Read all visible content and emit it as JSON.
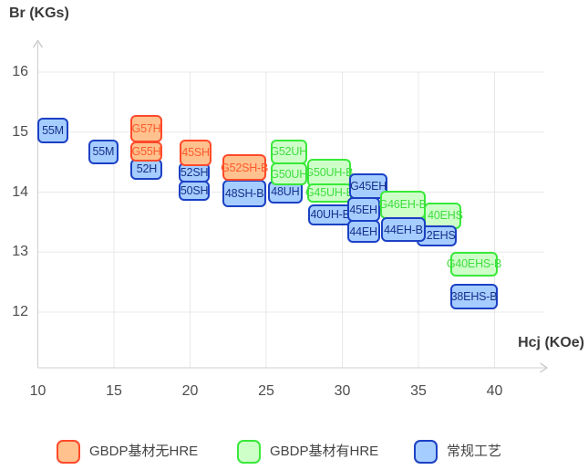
{
  "colors": {
    "orange": {
      "fill": "#FFC18E",
      "border": "#FF4A2A",
      "text": "#FF5A2D"
    },
    "green": {
      "fill": "#CEFFC9",
      "border": "#39E939",
      "text": "#3FDD3F"
    },
    "blue": {
      "fill": "#A6CDFF",
      "border": "#1B41C4",
      "text": "#17308C"
    }
  },
  "legend": [
    {
      "label": "GBDP基材无HRE",
      "series": "orange"
    },
    {
      "label": "GBDP基材有HRE",
      "series": "green"
    },
    {
      "label": "常规工艺",
      "series": "blue"
    }
  ],
  "layout_hints": {
    "label_pad_left": {
      "2EHS": 10,
      "40EHS": 6
    }
  },
  "chart_data": {
    "type": "scatter",
    "subtype": "labeled-grade-range-boxes",
    "xlabel": "Hcj (KOe)",
    "ylabel": "Br (KGs)",
    "xticks": [
      10,
      15,
      20,
      25,
      30,
      35,
      40
    ],
    "yticks": [
      16,
      15,
      14,
      13,
      12
    ],
    "xlim": [
      10,
      43.3
    ],
    "ylim": [
      11.1,
      16.5
    ],
    "grid": true,
    "legend_position": "bottom",
    "boxes": [
      {
        "label": "55M",
        "series": "blue",
        "hcj": [
          9.97,
          12.0
        ],
        "br": [
          14.81,
          15.24
        ],
        "z": 1
      },
      {
        "label": "55M",
        "series": "blue",
        "hcj": [
          13.3,
          15.3
        ],
        "br": [
          14.46,
          14.88
        ],
        "z": 1
      },
      {
        "label": "G57H",
        "series": "orange",
        "hcj": [
          16.05,
          18.2
        ],
        "br": [
          14.83,
          15.29
        ],
        "z": 1
      },
      {
        "label": "G55H",
        "series": "orange",
        "hcj": [
          16.05,
          18.2
        ],
        "br": [
          14.51,
          14.84
        ],
        "z": 2
      },
      {
        "label": "52H",
        "series": "blue",
        "hcj": [
          16.1,
          18.2
        ],
        "br": [
          14.21,
          14.56
        ],
        "z": 1
      },
      {
        "label": "45SH",
        "series": "orange",
        "hcj": [
          19.33,
          21.4
        ],
        "br": [
          14.44,
          14.87
        ],
        "z": 2
      },
      {
        "label": "52SH",
        "series": "blue",
        "hcj": [
          19.25,
          21.3
        ],
        "br": [
          14.16,
          14.49
        ],
        "z": 1
      },
      {
        "label": "50SH",
        "series": "blue",
        "hcj": [
          19.25,
          21.3
        ],
        "br": [
          13.85,
          14.19
        ],
        "z": 1
      },
      {
        "label": "G52SH-B",
        "series": "orange",
        "hcj": [
          22.14,
          25.0
        ],
        "br": [
          14.19,
          14.63
        ],
        "z": 2
      },
      {
        "label": "48SH-B",
        "series": "blue",
        "hcj": [
          22.14,
          25.0
        ],
        "br": [
          13.75,
          14.2
        ],
        "z": 1
      },
      {
        "label": "48UH",
        "series": "blue",
        "hcj": [
          25.12,
          27.38
        ],
        "br": [
          13.81,
          14.19
        ],
        "z": 1
      },
      {
        "label": "G52UH",
        "series": "green",
        "hcj": [
          25.28,
          27.68
        ],
        "br": [
          14.47,
          14.87
        ],
        "z": 2
      },
      {
        "label": "G50UH",
        "series": "green",
        "hcj": [
          25.28,
          27.68
        ],
        "br": [
          14.11,
          14.49
        ],
        "z": 2
      },
      {
        "label": "G50UH-B",
        "series": "green",
        "hcj": [
          27.68,
          30.57
        ],
        "br": [
          14.08,
          14.56
        ],
        "z": 2
      },
      {
        "label": "G45UH-B",
        "series": "green",
        "hcj": [
          27.68,
          30.63
        ],
        "br": [
          13.83,
          14.14
        ],
        "z": 2
      },
      {
        "label": "40UH-B",
        "series": "blue",
        "hcj": [
          27.77,
          30.63
        ],
        "br": [
          13.45,
          13.79
        ],
        "z": 1
      },
      {
        "label": "G45EH",
        "series": "blue",
        "hcj": [
          30.47,
          32.96
        ],
        "br": [
          13.88,
          14.31
        ],
        "z": 3
      },
      {
        "label": "45EH",
        "series": "blue",
        "hcj": [
          30.31,
          32.46
        ],
        "br": [
          13.5,
          13.91
        ],
        "z": 4
      },
      {
        "label": "44EH",
        "series": "blue",
        "hcj": [
          30.31,
          32.46
        ],
        "br": [
          13.15,
          13.53
        ],
        "z": 4
      },
      {
        "label": "G46EH-B",
        "series": "green",
        "hcj": [
          32.47,
          35.46
        ],
        "br": [
          13.55,
          14.03
        ],
        "z": 4
      },
      {
        "label": "44EH-B",
        "series": "blue",
        "hcj": [
          32.56,
          35.46
        ],
        "br": [
          13.17,
          13.58
        ],
        "z": 5
      },
      {
        "label": "40EHS",
        "series": "green",
        "hcj": [
          35.36,
          37.81
        ],
        "br": [
          13.39,
          13.83
        ],
        "z": 2
      },
      {
        "label": "2EHS",
        "series": "blue",
        "hcj": [
          34.86,
          37.5
        ],
        "br": [
          13.1,
          13.45
        ],
        "z": 3
      },
      {
        "label": "G40EHS-B",
        "series": "green",
        "hcj": [
          37.1,
          40.21
        ],
        "br": [
          12.6,
          13.0
        ],
        "z": 1
      },
      {
        "label": "38EHS-B",
        "series": "blue",
        "hcj": [
          37.1,
          40.21
        ],
        "br": [
          12.04,
          12.47
        ],
        "z": 1
      }
    ]
  }
}
